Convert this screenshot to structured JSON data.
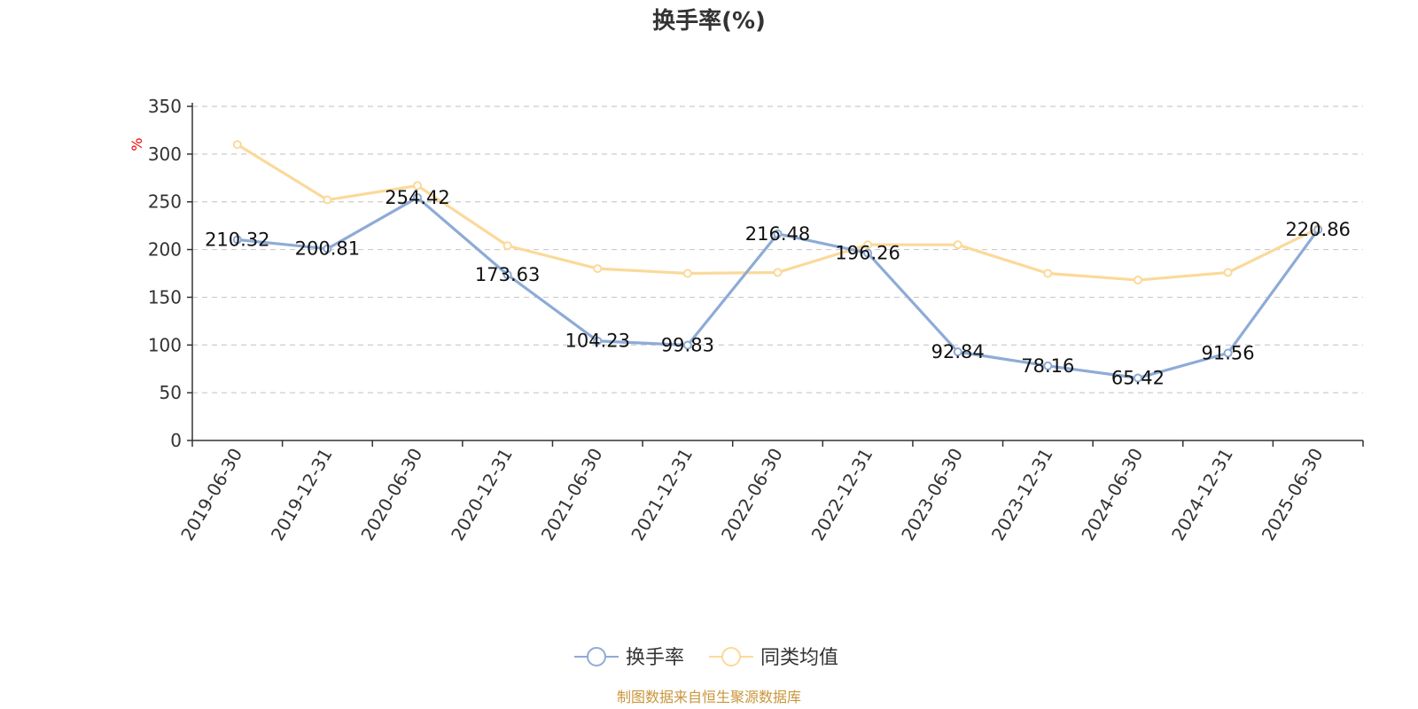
{
  "chart_data": {
    "type": "line",
    "title": "换手率(%)",
    "ylabel": "%",
    "ylim": [
      0,
      350
    ],
    "yticks": [
      0,
      50,
      100,
      150,
      200,
      250,
      300,
      350
    ],
    "grid": true,
    "categories": [
      "2019-06-30",
      "2019-12-31",
      "2020-06-30",
      "2020-12-31",
      "2021-06-30",
      "2021-12-31",
      "2022-06-30",
      "2022-12-31",
      "2023-06-30",
      "2023-12-31",
      "2024-06-30",
      "2024-12-31",
      "2025-06-30"
    ],
    "series": [
      {
        "name": "换手率",
        "color": "#8eabd6",
        "values": [
          210.32,
          200.81,
          254.42,
          173.63,
          104.23,
          99.83,
          216.48,
          196.26,
          92.84,
          78.16,
          65.42,
          91.56,
          220.86
        ],
        "labels": [
          "210.32",
          "200.81",
          "254.42",
          "173.63",
          "104.23",
          "99.83",
          "216.48",
          "196.26",
          "92.84",
          "78.16",
          "65.42",
          "91.56",
          "220.86"
        ]
      },
      {
        "name": "同类均值",
        "color": "#fbd99a",
        "values": [
          310,
          252,
          267,
          204,
          180,
          175,
          176,
          205,
          205,
          175,
          168,
          176,
          222
        ]
      }
    ],
    "legend_position": "bottom-center"
  },
  "source_note": "制图数据来自恒生聚源数据库"
}
